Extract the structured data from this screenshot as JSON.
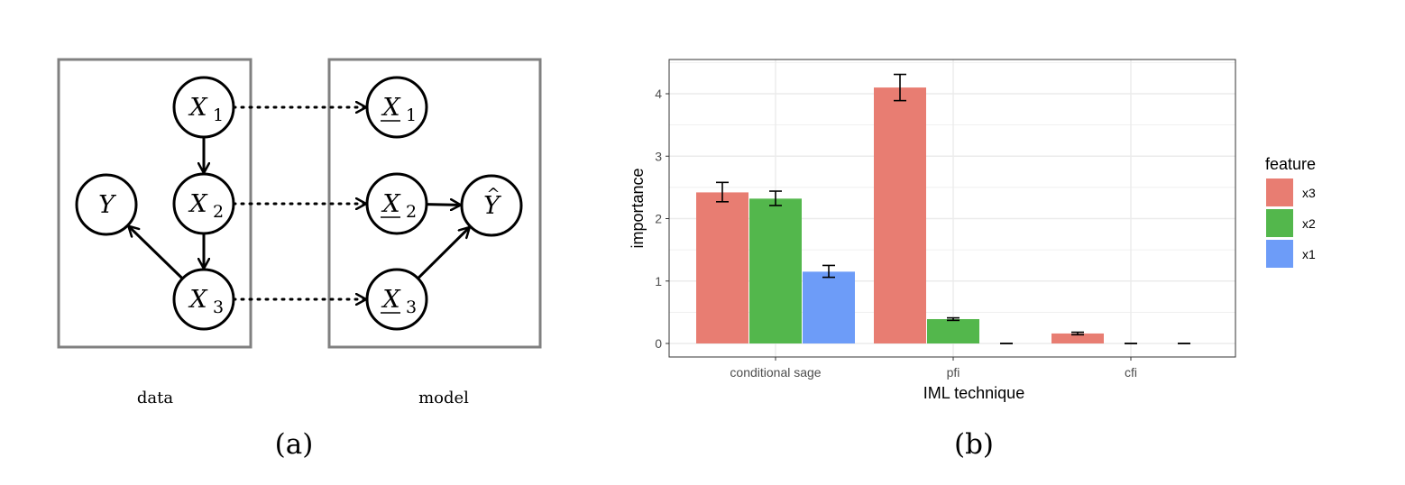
{
  "diagram": {
    "nodes": {
      "x1": {
        "base": "X",
        "sub": "1"
      },
      "x2": {
        "base": "X",
        "sub": "2"
      },
      "x3": {
        "base": "X",
        "sub": "3"
      },
      "y": {
        "base": "Y"
      },
      "mx1": {
        "base": "X",
        "sub": "1"
      },
      "mx2": {
        "base": "X",
        "sub": "2"
      },
      "mx3": {
        "base": "X",
        "sub": "3"
      },
      "yhat": {
        "base": "Y",
        "accent": "^"
      }
    },
    "box_labels": {
      "data": "data",
      "model": "model"
    },
    "edges": [
      {
        "from": "x1",
        "to": "x2",
        "style": "solid"
      },
      {
        "from": "x2",
        "to": "x3",
        "style": "solid"
      },
      {
        "from": "x3",
        "to": "y",
        "style": "solid"
      },
      {
        "from": "x1",
        "to": "mx1",
        "style": "dotted"
      },
      {
        "from": "x2",
        "to": "mx2",
        "style": "dotted"
      },
      {
        "from": "x3",
        "to": "mx3",
        "style": "dotted"
      },
      {
        "from": "mx2",
        "to": "yhat",
        "style": "solid"
      },
      {
        "from": "mx3",
        "to": "yhat",
        "style": "solid"
      }
    ]
  },
  "panel_labels": {
    "a": "(a)",
    "b": "(b)"
  },
  "chart_data": {
    "type": "bar",
    "categories": [
      "conditional sage",
      "pfi",
      "cfi"
    ],
    "xlabel": "IML technique",
    "ylabel": "importance",
    "ylim": [
      0,
      4.5
    ],
    "yticks": [
      0,
      1,
      2,
      3,
      4
    ],
    "grid": true,
    "legend": {
      "title": "feature",
      "position": "right"
    },
    "series": [
      {
        "name": "x3",
        "color": "#e87d72",
        "values": [
          2.42,
          4.1,
          0.16
        ],
        "err_low": [
          2.27,
          3.89,
          0.14
        ],
        "err_high": [
          2.58,
          4.31,
          0.18
        ]
      },
      {
        "name": "x2",
        "color": "#53b74c",
        "values": [
          2.32,
          0.39,
          0.0
        ],
        "err_low": [
          2.21,
          0.37,
          0.0
        ],
        "err_high": [
          2.44,
          0.41,
          0.0
        ]
      },
      {
        "name": "x1",
        "color": "#6d9cf8",
        "values": [
          1.15,
          0.0,
          0.0
        ],
        "err_low": [
          1.06,
          0.0,
          0.0
        ],
        "err_high": [
          1.25,
          0.0,
          0.0
        ]
      }
    ]
  }
}
